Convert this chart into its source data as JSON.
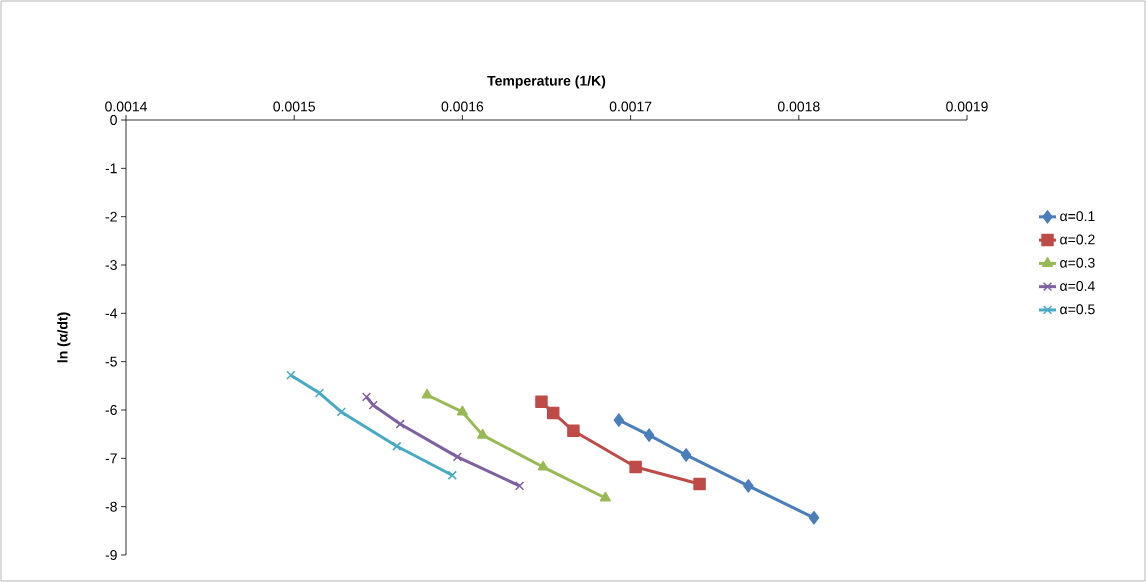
{
  "chart_data": {
    "type": "line",
    "xlabel": "Temperature (1/K)",
    "ylabel": "ln (α/dt)",
    "xlim": [
      0.0014,
      0.0019
    ],
    "xticks": [
      0.0014,
      0.0015,
      0.0016,
      0.0017,
      0.0018,
      0.0019
    ],
    "ylim": [
      -9,
      0
    ],
    "yticks": [
      -9,
      -8,
      -7,
      -6,
      -5,
      -4,
      -3,
      -2,
      -1,
      0
    ],
    "grid": false,
    "legend": "right",
    "series": [
      {
        "name": "α=0.1",
        "color": "#4a7ebb",
        "marker": "diamond",
        "x": [
          0.001693,
          0.001711,
          0.001733,
          0.00177,
          0.001809
        ],
        "values": [
          -6.21,
          -6.52,
          -6.93,
          -7.57,
          -8.23
        ]
      },
      {
        "name": "α=0.2",
        "color": "#be4b48",
        "marker": "square",
        "x": [
          0.001647,
          0.001654,
          0.001666,
          0.001703,
          0.001741
        ],
        "values": [
          -5.83,
          -6.06,
          -6.43,
          -7.18,
          -7.53
        ]
      },
      {
        "name": "α=0.3",
        "color": "#98b954",
        "marker": "triangle",
        "x": [
          0.001579,
          0.0016,
          0.001612,
          0.001648,
          0.001685
        ],
        "values": [
          -5.69,
          -6.04,
          -6.52,
          -7.18,
          -7.82
        ]
      },
      {
        "name": "α=0.4",
        "color": "#7d60a0",
        "marker": "cross",
        "x": [
          0.001543,
          0.001547,
          0.001563,
          0.001597,
          0.001634
        ],
        "values": [
          -5.73,
          -5.9,
          -6.29,
          -6.97,
          -7.57
        ]
      },
      {
        "name": "α=0.5",
        "color": "#46aac5",
        "marker": "cross",
        "x": [
          0.001498,
          0.001515,
          0.001528,
          0.001561,
          0.001594
        ],
        "values": [
          -5.28,
          -5.65,
          -6.04,
          -6.75,
          -7.35
        ]
      }
    ]
  }
}
